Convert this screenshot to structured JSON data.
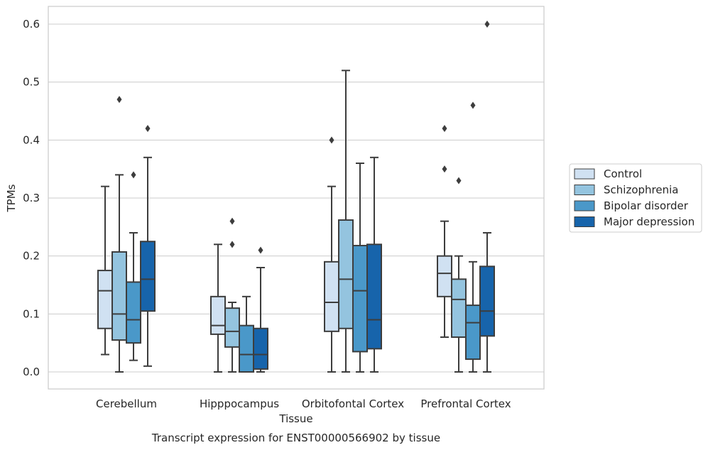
{
  "chart_data": {
    "type": "box",
    "title": "",
    "caption": "Transcript expression for ENST00000566902 by tissue",
    "xlabel": "Tissue",
    "ylabel": "TPMs",
    "ylim": [
      -0.03,
      0.63
    ],
    "yticks": [
      0.0,
      0.1,
      0.2,
      0.3,
      0.4,
      0.5,
      0.6
    ],
    "ytick_labels": [
      "0.0",
      "0.1",
      "0.2",
      "0.3",
      "0.4",
      "0.5",
      "0.6"
    ],
    "grid": "horizontal",
    "legend_position": "right",
    "categories": [
      "Cerebellum",
      "Hipppocampus",
      "Orbitofontal Cortex",
      "Prefrontal Cortex"
    ],
    "series": [
      {
        "name": "Control",
        "color": "#d0e1f2",
        "boxes": [
          {
            "whislo": 0.03,
            "q1": 0.075,
            "med": 0.14,
            "q3": 0.175,
            "whishi": 0.32,
            "fliers": []
          },
          {
            "whislo": 0.0,
            "q1": 0.065,
            "med": 0.08,
            "q3": 0.13,
            "whishi": 0.22,
            "fliers": []
          },
          {
            "whislo": 0.0,
            "q1": 0.07,
            "med": 0.12,
            "q3": 0.19,
            "whishi": 0.32,
            "fliers": [
              0.4
            ]
          },
          {
            "whislo": 0.06,
            "q1": 0.13,
            "med": 0.17,
            "q3": 0.2,
            "whishi": 0.26,
            "fliers": [
              0.35,
              0.42
            ]
          }
        ]
      },
      {
        "name": "Schizophrenia",
        "color": "#94c4df",
        "boxes": [
          {
            "whislo": 0.0,
            "q1": 0.055,
            "med": 0.1,
            "q3": 0.207,
            "whishi": 0.34,
            "fliers": [
              0.47
            ]
          },
          {
            "whislo": 0.0,
            "q1": 0.043,
            "med": 0.07,
            "q3": 0.11,
            "whishi": 0.12,
            "fliers": [
              0.22,
              0.26
            ]
          },
          {
            "whislo": 0.0,
            "q1": 0.075,
            "med": 0.16,
            "q3": 0.262,
            "whishi": 0.52,
            "fliers": []
          },
          {
            "whislo": 0.0,
            "q1": 0.06,
            "med": 0.125,
            "q3": 0.16,
            "whishi": 0.2,
            "fliers": [
              0.33
            ]
          }
        ]
      },
      {
        "name": "Bipolar disorder",
        "color": "#4a98c9",
        "boxes": [
          {
            "whislo": 0.02,
            "q1": 0.05,
            "med": 0.09,
            "q3": 0.155,
            "whishi": 0.24,
            "fliers": [
              0.34
            ]
          },
          {
            "whislo": 0.0,
            "q1": 0.0,
            "med": 0.03,
            "q3": 0.08,
            "whishi": 0.13,
            "fliers": []
          },
          {
            "whislo": 0.0,
            "q1": 0.035,
            "med": 0.14,
            "q3": 0.218,
            "whishi": 0.36,
            "fliers": []
          },
          {
            "whislo": 0.0,
            "q1": 0.022,
            "med": 0.085,
            "q3": 0.115,
            "whishi": 0.19,
            "fliers": [
              0.46
            ]
          }
        ]
      },
      {
        "name": "Major depression",
        "color": "#1764ab",
        "boxes": [
          {
            "whislo": 0.01,
            "q1": 0.105,
            "med": 0.16,
            "q3": 0.225,
            "whishi": 0.37,
            "fliers": [
              0.42
            ]
          },
          {
            "whislo": 0.0,
            "q1": 0.005,
            "med": 0.03,
            "q3": 0.075,
            "whishi": 0.18,
            "fliers": [
              0.21
            ]
          },
          {
            "whislo": 0.0,
            "q1": 0.04,
            "med": 0.09,
            "q3": 0.22,
            "whishi": 0.37,
            "fliers": []
          },
          {
            "whislo": 0.0,
            "q1": 0.062,
            "med": 0.105,
            "q3": 0.182,
            "whishi": 0.24,
            "fliers": [
              0.6
            ]
          }
        ]
      }
    ]
  }
}
